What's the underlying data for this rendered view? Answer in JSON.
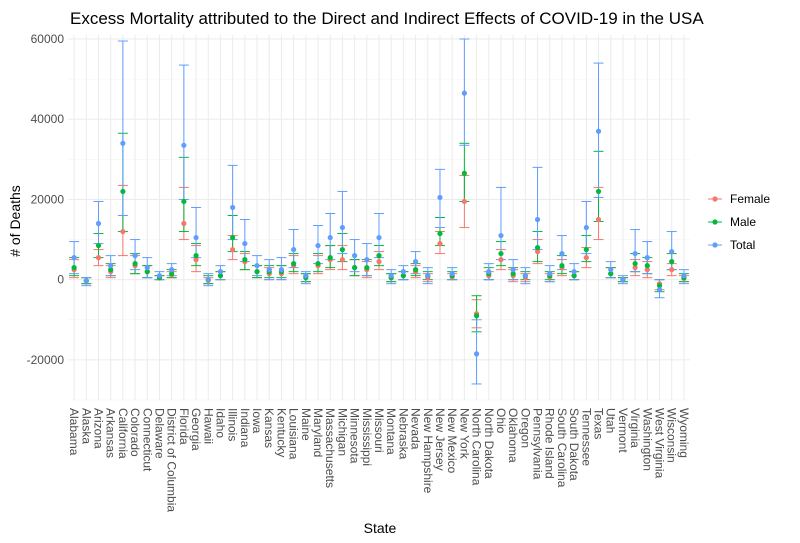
{
  "chart_data": {
    "type": "scatter",
    "title": "Excess Mortality attributed to the Direct and Indirect Effects of COVID-19 in the USA",
    "xlabel": "State",
    "ylabel": "# of Deaths",
    "ylim": [
      -30000,
      61000
    ],
    "yticks": [
      -20000,
      0,
      20000,
      40000,
      60000
    ],
    "ytick_labels": [
      "-20000",
      "0",
      "20000",
      "40000",
      "60000"
    ],
    "grid": true,
    "legend_position": "right",
    "categories": [
      "Alabama",
      "Alaska",
      "Arizona",
      "Arkansas",
      "California",
      "Colorado",
      "Connecticut",
      "Delaware",
      "District of Columbia",
      "Florida",
      "Georgia",
      "Hawaii",
      "Idaho",
      "Illinois",
      "Indiana",
      "Iowa",
      "Kansas",
      "Kentucky",
      "Louisiana",
      "Maine",
      "Maryland",
      "Massachusetts",
      "Michigan",
      "Minnesota",
      "Mississippi",
      "Missouri",
      "Montana",
      "Nebraska",
      "Nevada",
      "New Hampshire",
      "New Jersey",
      "New Mexico",
      "New York",
      "North Carolina",
      "North Dakota",
      "Ohio",
      "Oklahoma",
      "Oregon",
      "Pennsylvania",
      "Rhode Island",
      "South Carolina",
      "South Dakota",
      "Tennessee",
      "Texas",
      "Utah",
      "Vermont",
      "Virginia",
      "Washington",
      "West Virginia",
      "Wisconsin",
      "Wyoming"
    ],
    "series": [
      {
        "name": "Female",
        "color": "#F8766D",
        "values": [
          2500,
          -300,
          5500,
          2000,
          12000,
          3500,
          2000,
          400,
          1200,
          14000,
          5000,
          -200,
          1000,
          7500,
          4500,
          2000,
          1500,
          1500,
          3500,
          700,
          3500,
          5000,
          5000,
          3000,
          2500,
          4500,
          500,
          1000,
          2000,
          500,
          9000,
          700,
          19500,
          -8500,
          1000,
          5000,
          1000,
          500,
          7000,
          700,
          3000,
          1000,
          5500,
          15000,
          1500,
          100,
          3000,
          2500,
          -1000,
          2500,
          300
        ],
        "lower": [
          500,
          -1000,
          3500,
          500,
          6000,
          1500,
          500,
          0,
          500,
          10000,
          2000,
          -1000,
          0,
          5000,
          2500,
          500,
          0,
          0,
          1500,
          -500,
          1500,
          2500,
          2500,
          1000,
          500,
          2500,
          -500,
          0,
          500,
          -500,
          6500,
          0,
          13000,
          -12000,
          0,
          2500,
          -500,
          -500,
          4000,
          -500,
          1000,
          0,
          3000,
          10000,
          500,
          -500,
          1000,
          500,
          -2500,
          1000,
          -500
        ],
        "upper": [
          5000,
          500,
          7500,
          3500,
          23500,
          6000,
          3500,
          1000,
          2000,
          23000,
          8500,
          500,
          2000,
          11000,
          6500,
          3500,
          3000,
          3500,
          6000,
          1500,
          6000,
          8500,
          8500,
          5000,
          4500,
          7000,
          1500,
          2000,
          3500,
          1500,
          12000,
          1500,
          26000,
          -5000,
          2000,
          7500,
          2500,
          1500,
          10000,
          1500,
          5000,
          2000,
          8000,
          23000,
          3000,
          500,
          5000,
          4500,
          0,
          4000,
          1000
        ]
      },
      {
        "name": "Male",
        "color": "#00BA38",
        "values": [
          3000,
          -300,
          8500,
          2500,
          22000,
          4000,
          2000,
          500,
          1500,
          19500,
          6000,
          0,
          1000,
          10500,
          5000,
          2000,
          2000,
          2000,
          4000,
          500,
          4000,
          5500,
          7500,
          3000,
          3000,
          6000,
          500,
          1000,
          2500,
          1000,
          11500,
          1000,
          26500,
          -9000,
          1500,
          6500,
          1500,
          1000,
          8000,
          1000,
          3500,
          1000,
          7500,
          22000,
          1500,
          0,
          4000,
          3500,
          -1500,
          4500,
          500
        ],
        "lower": [
          1000,
          -1000,
          5500,
          1000,
          12000,
          1500,
          500,
          0,
          500,
          12000,
          3500,
          -1000,
          0,
          7000,
          2500,
          500,
          500,
          500,
          2000,
          -500,
          2000,
          3000,
          4500,
          1000,
          1000,
          3500,
          -500,
          0,
          1000,
          0,
          8500,
          0,
          19500,
          -13000,
          0,
          3500,
          0,
          0,
          4500,
          0,
          1500,
          0,
          4500,
          14500,
          500,
          -500,
          2000,
          1500,
          -3000,
          2500,
          -500
        ],
        "upper": [
          5500,
          500,
          11500,
          4000,
          36500,
          6500,
          3500,
          1000,
          2500,
          30500,
          9000,
          1000,
          2000,
          16000,
          7000,
          3500,
          3500,
          3500,
          6500,
          1500,
          6500,
          8500,
          11500,
          5000,
          5000,
          8500,
          1500,
          2000,
          4000,
          2000,
          15500,
          2000,
          34000,
          -4000,
          3000,
          9500,
          3000,
          2000,
          12000,
          2000,
          6000,
          2000,
          11000,
          32000,
          3000,
          500,
          6500,
          5500,
          0,
          6500,
          1500
        ]
      },
      {
        "name": "Total",
        "color": "#619CFF",
        "values": [
          5500,
          -300,
          14000,
          3500,
          34000,
          6000,
          3000,
          1000,
          2500,
          33500,
          10500,
          0,
          2000,
          18000,
          9000,
          3500,
          2500,
          2500,
          7500,
          1000,
          8500,
          10500,
          13000,
          6000,
          5000,
          10500,
          1000,
          2000,
          4500,
          1000,
          20500,
          1500,
          46500,
          -18500,
          2000,
          11000,
          2500,
          1000,
          15000,
          1500,
          6500,
          2000,
          13000,
          37000,
          2500,
          0,
          6500,
          5500,
          -2500,
          7000,
          1000
        ],
        "lower": [
          1500,
          -1500,
          9000,
          1000,
          16000,
          2500,
          500,
          0,
          1000,
          20000,
          5500,
          -1500,
          0,
          10000,
          4500,
          1000,
          0,
          0,
          3000,
          -1000,
          4000,
          5000,
          6500,
          2000,
          1000,
          5500,
          -1000,
          0,
          1500,
          -1000,
          13000,
          0,
          33500,
          -26000,
          0,
          5000,
          0,
          -1000,
          7500,
          -500,
          2500,
          0,
          6500,
          20500,
          500,
          -1000,
          2000,
          1500,
          -4500,
          2500,
          -1000
        ],
        "upper": [
          9500,
          500,
          19500,
          6000,
          59500,
          10000,
          5500,
          2000,
          4000,
          53500,
          18000,
          1500,
          3500,
          28500,
          15000,
          6000,
          5000,
          5500,
          12500,
          2000,
          13500,
          16500,
          22000,
          10000,
          9000,
          16500,
          2500,
          3500,
          7000,
          3000,
          27500,
          3000,
          60000,
          -10000,
          4000,
          23000,
          5000,
          3000,
          28000,
          3500,
          11000,
          4000,
          19500,
          54000,
          4500,
          1000,
          12500,
          9500,
          0,
          12000,
          2500
        ]
      }
    ]
  }
}
